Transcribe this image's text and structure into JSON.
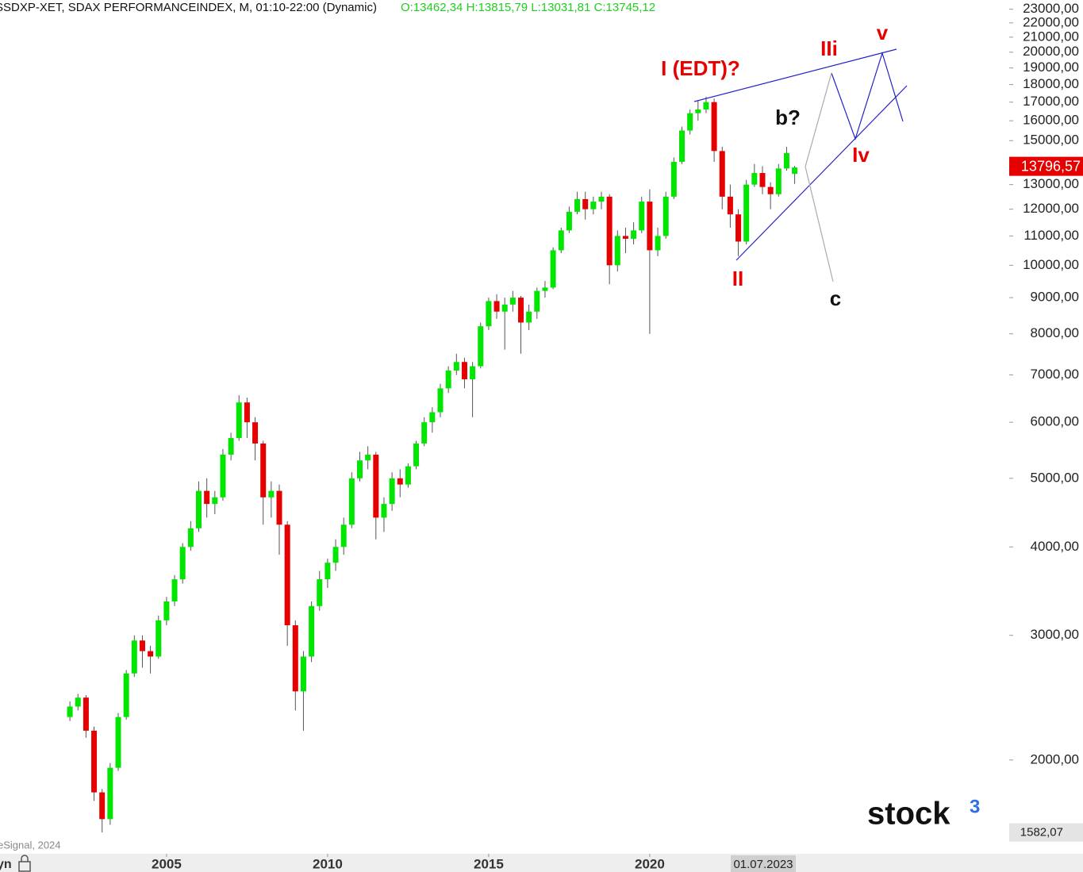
{
  "header": {
    "symbol": "SSDXP-XET, SDAX PERFORMANCEINDEX, M, 01:10-22:00 (Dynamic)",
    "ohlc": "O:13462,34 H:13815,79 L:13031,81 C:13745,12"
  },
  "chart_data": {
    "type": "candlestick",
    "log_scale": true,
    "up_color": "#00e600",
    "down_color": "#e60000",
    "wick_color": "#555555",
    "xlim": [
      1999.83,
      2031.16
    ],
    "ylim": [
      1478,
      23700
    ],
    "xticks": [
      2005,
      2010,
      2015,
      2020
    ],
    "cursor_x": {
      "value": 2023.5,
      "label": "01.07.2023"
    },
    "yticks": [
      {
        "value": 2000,
        "label": "2000,00"
      },
      {
        "value": 3000,
        "label": "3000,00"
      },
      {
        "value": 4000,
        "label": "4000,00"
      },
      {
        "value": 5000,
        "label": "5000,00"
      },
      {
        "value": 6000,
        "label": "6000,00"
      },
      {
        "value": 7000,
        "label": "7000,00"
      },
      {
        "value": 8000,
        "label": "8000,00"
      },
      {
        "value": 9000,
        "label": "9000,00"
      },
      {
        "value": 10000,
        "label": "10000,00"
      },
      {
        "value": 11000,
        "label": "11000,00"
      },
      {
        "value": 12000,
        "label": "12000,00"
      },
      {
        "value": 13000,
        "label": "13000,00"
      },
      {
        "value": 15000,
        "label": "15000,00"
      },
      {
        "value": 16000,
        "label": "16000,00"
      },
      {
        "value": 17000,
        "label": "17000,00"
      },
      {
        "value": 18000,
        "label": "18000,00"
      },
      {
        "value": 19000,
        "label": "19000,00"
      },
      {
        "value": 20000,
        "label": "20000,00"
      },
      {
        "value": 21000,
        "label": "21000,00"
      },
      {
        "value": 22000,
        "label": "22000,00"
      },
      {
        "value": 23000,
        "label": "23000,00"
      }
    ],
    "last_price": {
      "value": 13796.57,
      "label": "13796,57"
    },
    "low_label": {
      "value": 1582.07,
      "label": "1582,07"
    },
    "x": [
      2002.0,
      2002.25,
      2002.5,
      2002.75,
      2003.0,
      2003.25,
      2003.5,
      2003.75,
      2004.0,
      2004.25,
      2004.5,
      2004.75,
      2005.0,
      2005.25,
      2005.5,
      2005.75,
      2006.0,
      2006.25,
      2006.5,
      2006.75,
      2007.0,
      2007.25,
      2007.5,
      2007.75,
      2008.0,
      2008.25,
      2008.5,
      2008.75,
      2009.0,
      2009.25,
      2009.5,
      2009.75,
      2010.0,
      2010.25,
      2010.5,
      2010.75,
      2011.0,
      2011.25,
      2011.5,
      2011.75,
      2012.0,
      2012.25,
      2012.5,
      2012.75,
      2013.0,
      2013.25,
      2013.5,
      2013.75,
      2014.0,
      2014.25,
      2014.5,
      2014.75,
      2015.0,
      2015.25,
      2015.5,
      2015.75,
      2016.0,
      2016.25,
      2016.5,
      2016.75,
      2017.0,
      2017.25,
      2017.5,
      2017.75,
      2018.0,
      2018.25,
      2018.5,
      2018.75,
      2019.0,
      2019.25,
      2019.5,
      2019.75,
      2020.0,
      2020.25,
      2020.5,
      2020.75,
      2021.0,
      2021.25,
      2021.5,
      2021.75,
      2022.0,
      2022.25,
      2022.5,
      2022.75,
      2023.0,
      2023.25,
      2023.5,
      2023.75,
      2024.0,
      2024.25,
      2024.5
    ],
    "open": [
      2300,
      2380,
      2450,
      2200,
      1800,
      1650,
      1950,
      2300,
      2650,
      2950,
      2850,
      2800,
      3150,
      3350,
      3600,
      4000,
      4250,
      4800,
      4600,
      4700,
      5400,
      5700,
      6400,
      6000,
      5600,
      4700,
      4800,
      4300,
      3100,
      2500,
      2800,
      3300,
      3600,
      3800,
      4000,
      4300,
      5000,
      5300,
      5400,
      4400,
      4600,
      5000,
      4900,
      5200,
      5600,
      6000,
      6200,
      6700,
      7100,
      7300,
      6900,
      7200,
      8200,
      8900,
      8600,
      8800,
      9000,
      8300,
      8600,
      9200,
      9300,
      10500,
      11200,
      11900,
      12400,
      12000,
      12300,
      12500,
      10000,
      11000,
      10900,
      11200,
      12300,
      10500,
      11000,
      12500,
      14000,
      15500,
      16400,
      16600,
      17000,
      14500,
      12500,
      11800,
      10800,
      13000,
      13500,
      12900,
      12600,
      13700,
      13462.34
    ],
    "high": [
      2420,
      2480,
      2470,
      2230,
      1820,
      1980,
      2330,
      2680,
      3000,
      3000,
      2900,
      3200,
      3400,
      3650,
      4050,
      4350,
      4950,
      5000,
      4800,
      5500,
      5800,
      6550,
      6500,
      6100,
      5650,
      4950,
      4900,
      4350,
      3150,
      2850,
      3350,
      3700,
      3850,
      4100,
      4400,
      5100,
      5450,
      5550,
      5450,
      4700,
      5100,
      5150,
      5250,
      5650,
      6100,
      6300,
      6800,
      7200,
      7500,
      7400,
      7300,
      8300,
      9000,
      9100,
      9000,
      9200,
      9050,
      8800,
      9300,
      9500,
      10600,
      11300,
      12100,
      12700,
      12700,
      12500,
      12700,
      12600,
      11200,
      11300,
      11500,
      12500,
      12800,
      11300,
      12700,
      14200,
      15700,
      16600,
      17100,
      17300,
      17200,
      14700,
      13000,
      12000,
      13200,
      13900,
      13800,
      13100,
      13900,
      14700,
      13815.79
    ],
    "low": [
      2270,
      2350,
      2150,
      1750,
      1580,
      1620,
      1930,
      2280,
      2620,
      2700,
      2650,
      2780,
      3100,
      3300,
      3550,
      3950,
      4200,
      4400,
      4450,
      4650,
      5300,
      5650,
      5700,
      5300,
      4300,
      4400,
      3900,
      2900,
      2350,
      2200,
      2750,
      3250,
      3500,
      3700,
      3900,
      4250,
      4950,
      5150,
      4100,
      4200,
      4500,
      4700,
      4850,
      5150,
      5550,
      5800,
      6100,
      6600,
      7000,
      6700,
      6100,
      7150,
      8100,
      8400,
      7600,
      8600,
      7500,
      8100,
      8400,
      9000,
      9250,
      10400,
      11100,
      11800,
      11600,
      11800,
      12000,
      9400,
      9800,
      10400,
      10700,
      11100,
      8000,
      10300,
      10900,
      12400,
      13900,
      15300,
      16000,
      16400,
      14000,
      12000,
      11300,
      10300,
      10700,
      12900,
      12600,
      12000,
      12500,
      13600,
      13031.81
    ],
    "close": [
      2380,
      2450,
      2200,
      1800,
      1650,
      1950,
      2300,
      2650,
      2950,
      2850,
      2800,
      3150,
      3350,
      3600,
      4000,
      4250,
      4800,
      4600,
      4700,
      5400,
      5700,
      6400,
      6000,
      5600,
      4700,
      4800,
      4300,
      3100,
      2500,
      2800,
      3300,
      3600,
      3800,
      4000,
      4300,
      5000,
      5300,
      5400,
      4400,
      4600,
      5000,
      4900,
      5200,
      5600,
      6000,
      6200,
      6700,
      7100,
      7300,
      6900,
      7200,
      8200,
      8900,
      8600,
      8800,
      9000,
      8300,
      8600,
      9200,
      9300,
      10500,
      11200,
      11900,
      12400,
      12000,
      12300,
      12500,
      10000,
      11000,
      10900,
      11200,
      12300,
      10500,
      11000,
      12500,
      14000,
      15500,
      16400,
      16600,
      17000,
      14500,
      12500,
      11800,
      10800,
      13000,
      13500,
      12900,
      12600,
      13700,
      14400,
      13745.12
    ],
    "annotations": [
      "I (EDT)?",
      "IIi",
      "v",
      "b?",
      "Iv",
      "II",
      "c"
    ]
  },
  "footer": {
    "source": "eSignal, 2024",
    "status": "yn"
  },
  "logo": {
    "text": "stock",
    "sup": "3"
  }
}
